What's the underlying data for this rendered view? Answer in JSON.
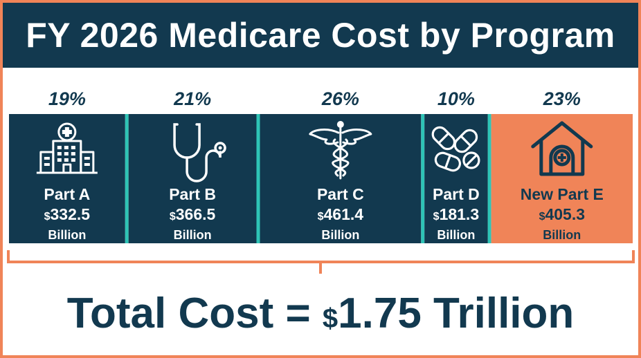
{
  "title": "FY 2026 Medicare Cost by Program",
  "total": {
    "label": "Total Cost =",
    "currency": "$",
    "value": "1.75 Trillion"
  },
  "colors": {
    "navy": "#12394f",
    "orange": "#f08458",
    "teal": "#2ec4b6",
    "white": "#ffffff"
  },
  "chart_data": {
    "type": "bar",
    "subtype": "proportional-segments",
    "title": "FY 2026 Medicare Cost by Program",
    "unit": "Billion",
    "currency": "$",
    "categories": [
      "Part A",
      "Part B",
      "Part C",
      "Part D",
      "New Part E"
    ],
    "values": [
      332.5,
      366.5,
      461.4,
      181.3,
      405.3
    ],
    "percent_labels": [
      "19%",
      "21%",
      "26%",
      "10%",
      "23%"
    ],
    "icons": [
      "hospital-icon",
      "stethoscope-icon",
      "caduceus-icon",
      "pills-icon",
      "home-health-icon"
    ],
    "highlight_index": 4
  }
}
